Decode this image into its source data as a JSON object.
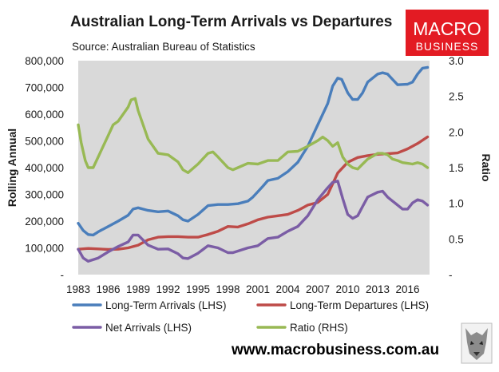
{
  "title": "Australian Long-Term Arrivals vs Departures",
  "source": "Source: Australian Bureau of Statistics",
  "logo": {
    "line1": "MACRO",
    "line2": "BUSINESS",
    "bg_color": "#e31b23"
  },
  "footer_url": "www.macrobusiness.com.au",
  "chart_data": {
    "type": "line",
    "title": "Australian Long-Term Arrivals vs Departures",
    "xlabel": "",
    "ylabel": "Rolling Annual",
    "y2label": "Ratio",
    "xlim": [
      1983,
      2018.2
    ],
    "ylim": [
      0,
      800000
    ],
    "y2lim": [
      0,
      3
    ],
    "grid": false,
    "legend_position": "bottom",
    "x_ticks": [
      1983,
      1986,
      1989,
      1992,
      1995,
      1998,
      2001,
      2004,
      2007,
      2010,
      2013,
      2016
    ],
    "x_tick_labels": [
      "1983",
      "1986",
      "1989",
      "1992",
      "1995",
      "1998",
      "2001",
      "2004",
      "2007",
      "2010",
      "2013",
      "2016"
    ],
    "y_ticks": [
      0,
      100000,
      200000,
      300000,
      400000,
      500000,
      600000,
      700000,
      800000
    ],
    "y_tick_labels": [
      "-",
      "100,000",
      "200,000",
      "300,000",
      "400,000",
      "500,000",
      "600,000",
      "700,000",
      "800,000"
    ],
    "y2_ticks": [
      0,
      0.5,
      1,
      1.5,
      2,
      2.5,
      3
    ],
    "y2_tick_labels": [
      "-",
      "0.5",
      "1.0",
      "1.5",
      "2.0",
      "2.5",
      "3.0"
    ],
    "series": [
      {
        "name": "Long-Term Arrivals (LHS)",
        "axis": "left",
        "color": "#4a7ebb",
        "x": [
          1983,
          1983.5,
          1984,
          1984.5,
          1985,
          1986,
          1987,
          1988,
          1988.5,
          1989,
          1990,
          1991,
          1992,
          1993,
          1993.5,
          1994,
          1995,
          1996,
          1997,
          1998,
          1999,
          2000,
          2000.5,
          2001,
          2001.5,
          2002,
          2003,
          2004,
          2005,
          2006,
          2007,
          2008,
          2008.5,
          2009,
          2009.4,
          2010,
          2010.5,
          2011,
          2011.5,
          2012,
          2013,
          2013.5,
          2014,
          2014.5,
          2015,
          2016,
          2016.5,
          2017,
          2017.5,
          2018
        ],
        "values": [
          192000,
          165000,
          150000,
          148000,
          160000,
          180000,
          200000,
          222000,
          245000,
          250000,
          240000,
          235000,
          238000,
          220000,
          205000,
          200000,
          225000,
          258000,
          262000,
          262000,
          265000,
          275000,
          290000,
          310000,
          330000,
          352000,
          360000,
          385000,
          420000,
          480000,
          560000,
          640000,
          705000,
          735000,
          730000,
          680000,
          655000,
          655000,
          680000,
          720000,
          750000,
          755000,
          750000,
          730000,
          710000,
          712000,
          720000,
          750000,
          772000,
          775000
        ]
      },
      {
        "name": "Long-Term Departures (LHS)",
        "axis": "left",
        "color": "#be4b48",
        "x": [
          1983,
          1984,
          1985,
          1986,
          1987,
          1988,
          1989,
          1990,
          1991,
          1992,
          1993,
          1994,
          1995,
          1996,
          1997,
          1998,
          1999,
          2000,
          2001,
          2002,
          2003,
          2004,
          2005,
          2006,
          2007,
          2008,
          2009,
          2010,
          2011,
          2012,
          2013,
          2014,
          2015,
          2016,
          2017,
          2018
        ],
        "values": [
          95000,
          98000,
          96000,
          94000,
          95000,
          100000,
          110000,
          130000,
          140000,
          142000,
          142000,
          140000,
          140000,
          150000,
          162000,
          180000,
          178000,
          190000,
          205000,
          215000,
          220000,
          225000,
          240000,
          260000,
          270000,
          300000,
          380000,
          420000,
          438000,
          445000,
          450000,
          452000,
          455000,
          470000,
          490000,
          515000
        ]
      },
      {
        "name": "Net Arrivals (LHS)",
        "axis": "left",
        "color": "#7b5da5",
        "x": [
          1983,
          1983.5,
          1984,
          1985,
          1986,
          1987,
          1988,
          1988.5,
          1989,
          1990,
          1991,
          1992,
          1993,
          1993.5,
          1994,
          1995,
          1996,
          1997,
          1998,
          1998.5,
          1999,
          2000,
          2001,
          2002,
          2003,
          2004,
          2005,
          2006,
          2007,
          2008,
          2008.5,
          2009,
          2009.5,
          2010,
          2010.5,
          2011,
          2011.5,
          2012,
          2013,
          2013.5,
          2014,
          2014.5,
          2015,
          2015.5,
          2016,
          2016.5,
          2017,
          2017.5,
          2018
        ],
        "values": [
          95000,
          62000,
          50000,
          62000,
          85000,
          105000,
          122000,
          148000,
          148000,
          110000,
          95000,
          96000,
          78000,
          62000,
          60000,
          80000,
          108000,
          100000,
          82000,
          82000,
          88000,
          100000,
          108000,
          135000,
          140000,
          162000,
          180000,
          220000,
          280000,
          325000,
          345000,
          350000,
          285000,
          225000,
          210000,
          220000,
          255000,
          290000,
          308000,
          312000,
          290000,
          275000,
          260000,
          245000,
          245000,
          268000,
          280000,
          275000,
          260000
        ]
      },
      {
        "name": "Ratio (RHS)",
        "axis": "right",
        "color": "#98b954",
        "x": [
          1983,
          1983.3,
          1983.7,
          1984,
          1984.5,
          1985,
          1986,
          1986.5,
          1987,
          1988,
          1988.3,
          1988.7,
          1989,
          1990,
          1991,
          1992,
          1993,
          1993.5,
          1994,
          1995,
          1996,
          1996.5,
          1997,
          1998,
          1998.5,
          1999,
          2000,
          2001,
          2002,
          2003,
          2004,
          2005,
          2006,
          2007,
          2007.5,
          2008,
          2008.5,
          2009,
          2009.5,
          2010,
          2010.5,
          2011,
          2011.5,
          2012,
          2013,
          2013.5,
          2014,
          2014.5,
          2015,
          2015.5,
          2016,
          2016.5,
          2017,
          2017.5,
          2018
        ],
        "values": [
          2.1,
          1.85,
          1.6,
          1.5,
          1.5,
          1.65,
          1.95,
          2.1,
          2.15,
          2.35,
          2.45,
          2.47,
          2.3,
          1.9,
          1.7,
          1.68,
          1.58,
          1.47,
          1.43,
          1.55,
          1.7,
          1.72,
          1.65,
          1.5,
          1.47,
          1.5,
          1.56,
          1.55,
          1.6,
          1.6,
          1.72,
          1.73,
          1.8,
          1.88,
          1.93,
          1.88,
          1.8,
          1.85,
          1.65,
          1.55,
          1.5,
          1.48,
          1.55,
          1.62,
          1.7,
          1.7,
          1.68,
          1.62,
          1.6,
          1.57,
          1.56,
          1.55,
          1.57,
          1.55,
          1.5
        ]
      }
    ]
  }
}
